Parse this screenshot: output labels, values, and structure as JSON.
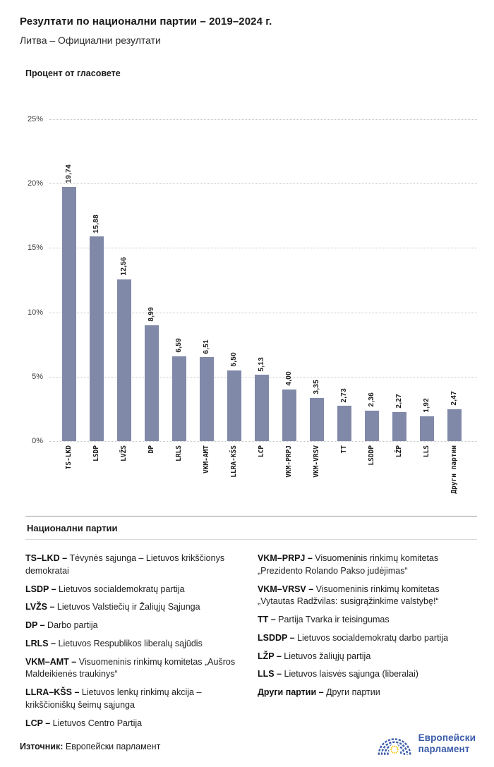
{
  "header": {
    "title": "Резултати по национални партии – 2019–2024 г.",
    "subtitle": "Литва – Официални резултати"
  },
  "chart_data": {
    "type": "bar",
    "title": "Процент от гласовете",
    "categories": [
      "TS-LKD",
      "LSDP",
      "LVŽS",
      "DP",
      "LRLS",
      "VKM-AMT",
      "LLRA-KŠS",
      "LCP",
      "VKM-PRPJ",
      "VKM-VRSV",
      "TT",
      "LSDDP",
      "LŽP",
      "LLS",
      "Други партии"
    ],
    "values": [
      19.74,
      15.88,
      12.56,
      8.99,
      6.59,
      6.51,
      5.5,
      5.13,
      4.0,
      3.35,
      2.73,
      2.36,
      2.27,
      1.92,
      2.47
    ],
    "value_labels": [
      "19,74",
      "15,88",
      "12,56",
      "8,99",
      "6,59",
      "6,51",
      "5,50",
      "5,13",
      "4,00",
      "3,35",
      "2,73",
      "2,36",
      "2,27",
      "1,92",
      "2,47"
    ],
    "xlabel": "",
    "ylabel": "",
    "ylim": [
      0,
      25
    ],
    "ytick_values": [
      0,
      5,
      10,
      15,
      20,
      25
    ],
    "ytick_labels": [
      "0%",
      "5%",
      "10%",
      "15%",
      "20%",
      "25%"
    ],
    "grid": true,
    "legend_position": "none",
    "bar_color": "#8189a9"
  },
  "parties": {
    "heading": "Национални партии",
    "left": [
      {
        "abbr": "TS–LKD –",
        "desc": "Tėvynės sąjunga – Lietuvos krikščionys demokratai"
      },
      {
        "abbr": "LSDP –",
        "desc": "Lietuvos socialdemokratų partija"
      },
      {
        "abbr": "LVŽS –",
        "desc": "Lietuvos Valstiečių ir Žaliųjų Sąjunga"
      },
      {
        "abbr": "DP –",
        "desc": "Darbo partija"
      },
      {
        "abbr": "LRLS –",
        "desc": "Lietuvos Respublikos liberalų sąjūdis"
      },
      {
        "abbr": "VKM–AMT –",
        "desc": "Visuomeninis rinkimų komitetas „Aušros Maldeikienės traukinys“"
      },
      {
        "abbr": "LLRA–KŠS –",
        "desc": "Lietuvos lenkų rinkimų akcija – krikščioniškų šeimų sąjunga"
      },
      {
        "abbr": "LCP –",
        "desc": "Lietuvos Centro Partija"
      }
    ],
    "right": [
      {
        "abbr": "VKM–PRPJ –",
        "desc": "Visuomeninis rinkimų komitetas „Prezidento Rolando Pakso judėjimas“"
      },
      {
        "abbr": "VKM–VRSV –",
        "desc": "Visuomeninis rinkimų komitetas „Vytautas Radžvilas: susigrąžinkime valstybę!“"
      },
      {
        "abbr": "TT –",
        "desc": "Partija Tvarka ir teisingumas"
      },
      {
        "abbr": "LSDDP –",
        "desc": "Lietuvos socialdemokratų darbo partija"
      },
      {
        "abbr": "LŽP –",
        "desc": "Lietuvos žaliųjų partija"
      },
      {
        "abbr": "LLS –",
        "desc": "Lietuvos laisvės sąjunga (liberalai)"
      },
      {
        "abbr": "Други партии –",
        "desc": "Други партии"
      }
    ]
  },
  "footer": {
    "source_label": "Източник:",
    "source_text": "Европейски парламент"
  },
  "logo": {
    "line1": "Европейски",
    "line2": "парламент",
    "color": "#3a5ba9",
    "star_color": "#f2c500"
  }
}
